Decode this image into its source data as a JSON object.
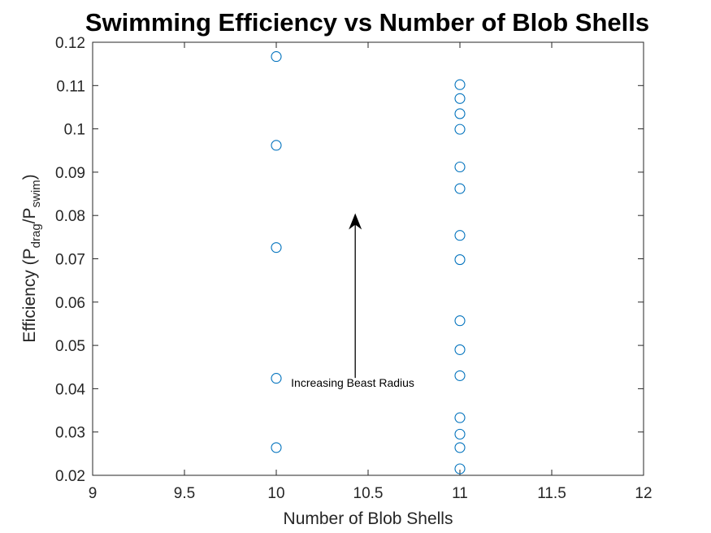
{
  "chart_data": {
    "type": "scatter",
    "title": "Swimming Efficiency vs Number of Blob Shells",
    "xlabel": "Number of Blob Shells",
    "ylabel": {
      "prefix": "Efficiency (P",
      "sub1": "drag",
      "mid": "/P",
      "sub2": "swim",
      "suffix": ")"
    },
    "xlim": [
      9,
      12
    ],
    "ylim": [
      0.02,
      0.12
    ],
    "xticks": [
      "9",
      "9.5",
      "10",
      "10.5",
      "11",
      "11.5",
      "12"
    ],
    "yticks": [
      "0.02",
      "0.03",
      "0.04",
      "0.05",
      "0.06",
      "0.07",
      "0.08",
      "0.09",
      "0.1",
      "0.11",
      "0.12"
    ],
    "grid": false,
    "marker": "circle",
    "marker_color": "#0072BD",
    "points": [
      {
        "x": 10,
        "y": 0.1167
      },
      {
        "x": 10,
        "y": 0.0962
      },
      {
        "x": 10,
        "y": 0.0726
      },
      {
        "x": 10,
        "y": 0.0424
      },
      {
        "x": 10,
        "y": 0.0264
      },
      {
        "x": 11,
        "y": 0.1102
      },
      {
        "x": 11,
        "y": 0.107
      },
      {
        "x": 11,
        "y": 0.1035
      },
      {
        "x": 11,
        "y": 0.0999
      },
      {
        "x": 11,
        "y": 0.0912
      },
      {
        "x": 11,
        "y": 0.0862
      },
      {
        "x": 11,
        "y": 0.0754
      },
      {
        "x": 11,
        "y": 0.0698
      },
      {
        "x": 11,
        "y": 0.0557
      },
      {
        "x": 11,
        "y": 0.049
      },
      {
        "x": 11,
        "y": 0.043
      },
      {
        "x": 11,
        "y": 0.0333
      },
      {
        "x": 11,
        "y": 0.0295
      },
      {
        "x": 11,
        "y": 0.0264
      },
      {
        "x": 11,
        "y": 0.0215
      }
    ],
    "annotation": {
      "text": "Increasing Beast Radius",
      "arrow_from": {
        "x": 10.43,
        "y": 0.0425
      },
      "arrow_to": {
        "x": 10.43,
        "y": 0.0805
      }
    }
  }
}
